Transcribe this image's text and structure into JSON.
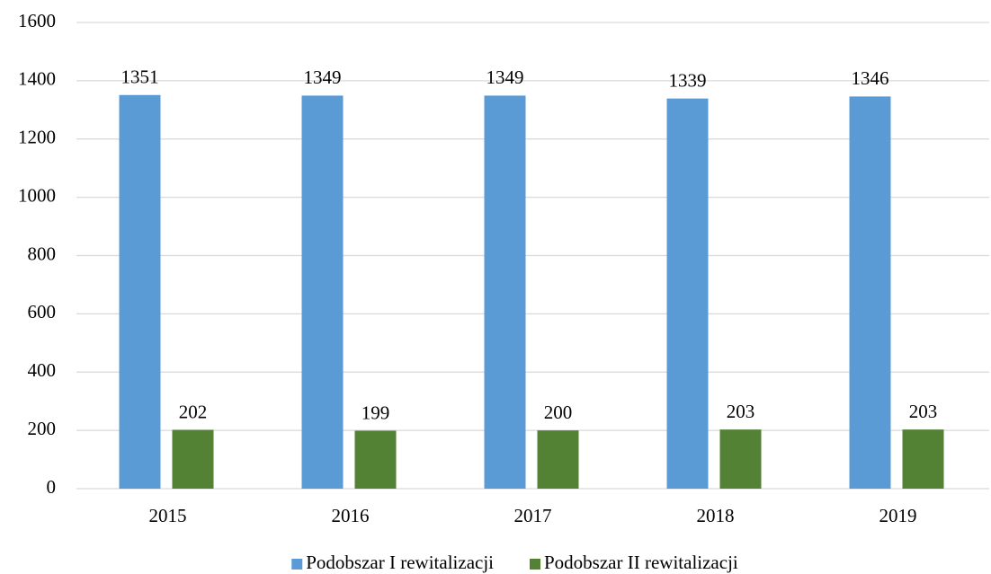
{
  "chart_data": {
    "type": "bar",
    "categories": [
      "2015",
      "2016",
      "2017",
      "2018",
      "2019"
    ],
    "series": [
      {
        "name": "Podobszar I rewitalizacji",
        "color": "#5b9bd5",
        "values": [
          1351,
          1349,
          1349,
          1339,
          1346
        ]
      },
      {
        "name": "Podobszar II rewitalizacji",
        "color": "#548235",
        "values": [
          202,
          199,
          200,
          203,
          203
        ]
      }
    ],
    "ylim": [
      0,
      1600
    ],
    "yticks": [
      0,
      200,
      400,
      600,
      800,
      1000,
      1200,
      1400,
      1600
    ],
    "grid": true,
    "legend": "bottom"
  }
}
